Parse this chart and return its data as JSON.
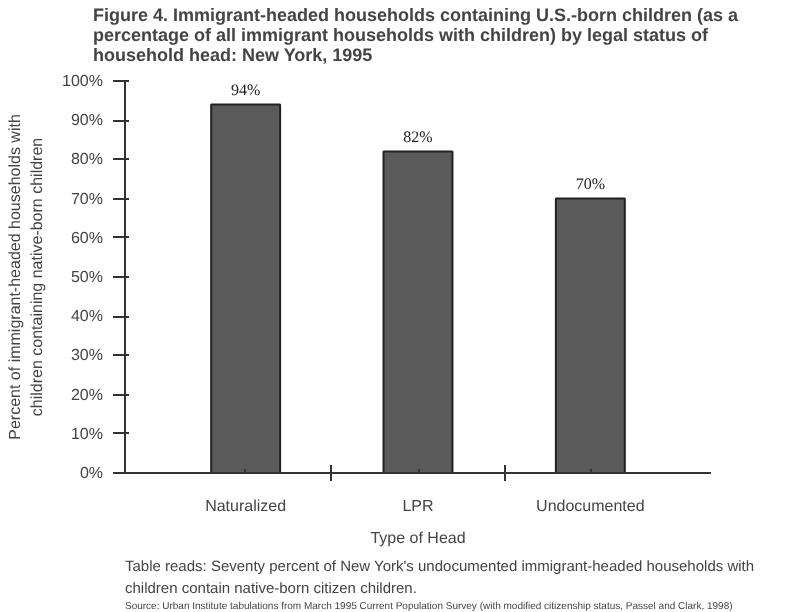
{
  "chart_data": {
    "type": "bar",
    "title": "Figure 4.  Immigrant-headed households containing U.S.-born children (as a percentage of all immigrant households with children) by legal status of household head:  New York, 1995",
    "xlabel": "Type of Head",
    "ylabel": "Percent of immigrant-headed households with children containing native-born children",
    "categories": [
      "Naturalized",
      "LPR",
      "Undocumented"
    ],
    "values": [
      94,
      82,
      70
    ],
    "value_labels": [
      "94%",
      "82%",
      "70%"
    ],
    "color": "#5a5a5a",
    "ylim": [
      0,
      100
    ],
    "yticks": [
      {
        "value": 0,
        "label": "0%"
      },
      {
        "value": 10,
        "label": "10%"
      },
      {
        "value": 20,
        "label": "20%"
      },
      {
        "value": 30,
        "label": "30%"
      },
      {
        "value": 40,
        "label": "40%"
      },
      {
        "value": 50,
        "label": "50%"
      },
      {
        "value": 60,
        "label": "60%"
      },
      {
        "value": 70,
        "label": "70%"
      },
      {
        "value": 80,
        "label": "80%"
      },
      {
        "value": 90,
        "label": "90%"
      },
      {
        "value": 100,
        "label": "100%"
      }
    ],
    "grid": false,
    "annotations": [
      "Table reads:  Seventy percent of New York's undocumented immigrant-headed households with children contain native-born citizen children.",
      "Source: Urban Institute tabulations from March 1995 Current Population Survey (with modified citizenship status, Passel and Clark, 1998)"
    ]
  }
}
